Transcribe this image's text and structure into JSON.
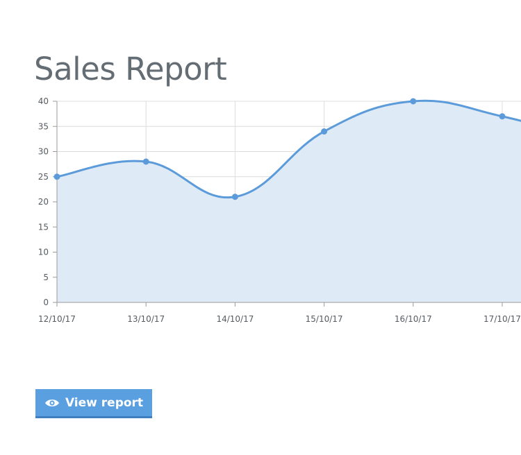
{
  "page": {
    "title": "Sales Report"
  },
  "actions": {
    "view_report_label": "View report",
    "view_report_icon": "eye-icon"
  },
  "colors": {
    "line": "#5b9bd9",
    "fill": "#dde9f7",
    "grid": "#dcdcdc",
    "axis": "#9a9a9a",
    "button": "#5aa0e0"
  },
  "chart_data": {
    "type": "area",
    "title": "",
    "xlabel": "",
    "ylabel": "",
    "categories": [
      "12/10/17",
      "13/10/17",
      "14/10/17",
      "15/10/17",
      "16/10/17",
      "17/10/17"
    ],
    "series": [
      {
        "values": [
          25,
          28,
          21,
          34,
          40,
          37
        ]
      }
    ],
    "ylim": [
      0,
      40
    ],
    "yticks": [
      0,
      5,
      10,
      15,
      20,
      25,
      30,
      35,
      40
    ],
    "grid": true,
    "legend": "none"
  }
}
